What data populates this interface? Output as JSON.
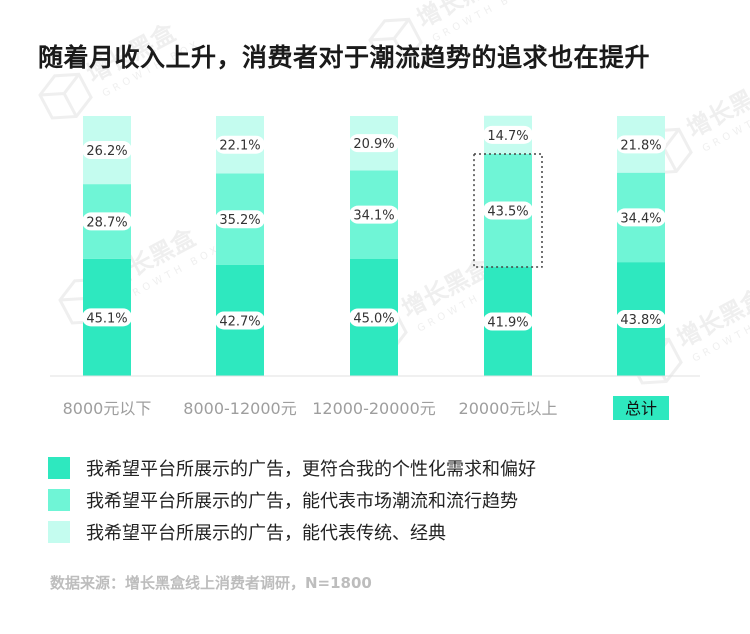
{
  "title": "随着月收入上升，消费者对于潮流趋势的追求也在提升",
  "source": "数据来源：增长黑盒线上消费者调研，N=1800",
  "watermark": {
    "cn": "增长黑盒",
    "en": "GROWTH BOX"
  },
  "chart_data": {
    "type": "bar",
    "stacked": true,
    "normalized_percent": true,
    "categories": [
      "8000元以下",
      "8000-12000元",
      "12000-20000元",
      "20000元以上",
      "总计"
    ],
    "highlight_category": "总计",
    "highlight_color": "#2ee8bf",
    "series": [
      {
        "name": "我希望平台所展示的广告，更符合我的个性化需求和偏好",
        "color": "#2ee8bf",
        "values": [
          45.1,
          42.7,
          45.0,
          41.9,
          43.8
        ],
        "labels": [
          "45.1%",
          "42.7%",
          "45.0%",
          "41.9%",
          "43.8%"
        ]
      },
      {
        "name": "我希望平台所展示的广告，能代表市场潮流和流行趋势",
        "color": "#6ff5d6",
        "values": [
          28.7,
          35.2,
          34.1,
          43.5,
          34.4
        ],
        "labels": [
          "28.7%",
          "35.2%",
          "34.1%",
          "43.5%",
          "34.4%"
        ]
      },
      {
        "name": "我希望平台所展示的广告，能代表传统、经典",
        "color": "#c4fcef",
        "values": [
          26.2,
          22.1,
          20.9,
          14.7,
          21.8
        ],
        "labels": [
          "26.2%",
          "22.1%",
          "20.9%",
          "14.7%",
          "21.8%"
        ]
      }
    ],
    "highlighted_segment": {
      "category": "20000元以上",
      "series": 1,
      "style": "dotted-box"
    },
    "ylim": [
      0,
      100
    ],
    "legend_position": "bottom"
  }
}
